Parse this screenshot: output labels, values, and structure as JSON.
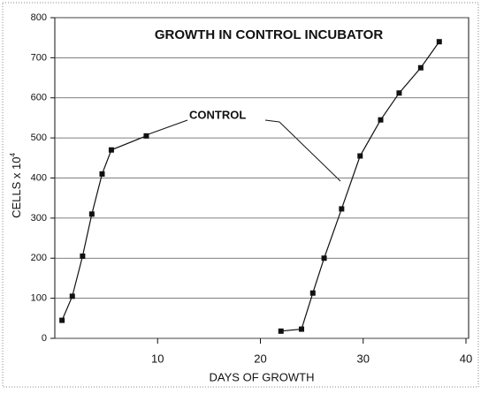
{
  "chart_data": {
    "type": "line",
    "title": "GROWTH IN CONTROL INCUBATOR",
    "xlabel": "DAYS OF GROWTH",
    "ylabel": "CELLS x 10",
    "ylabel_sup": "4",
    "annotation": "CONTROL",
    "xlim": [
      0,
      40
    ],
    "xticks": [
      10,
      20,
      30,
      40
    ],
    "ylim": [
      0,
      800
    ],
    "yticks": [
      0,
      100,
      200,
      300,
      400,
      500,
      600,
      700,
      800
    ],
    "grid": true,
    "series": [
      {
        "color": "#111111",
        "x": [
          0.7,
          1.7,
          2.7,
          3.6,
          4.6,
          5.5,
          8.9
        ],
        "values": [
          45,
          105,
          205,
          310,
          410,
          470,
          505
        ]
      },
      {
        "color": "#111111",
        "x": [
          22,
          24,
          25.1,
          26.2,
          27.9,
          29.7,
          31.7,
          33.5,
          35.6,
          37.4
        ],
        "values": [
          18,
          23,
          113,
          200,
          323,
          455,
          545,
          612,
          675,
          740
        ]
      }
    ]
  }
}
